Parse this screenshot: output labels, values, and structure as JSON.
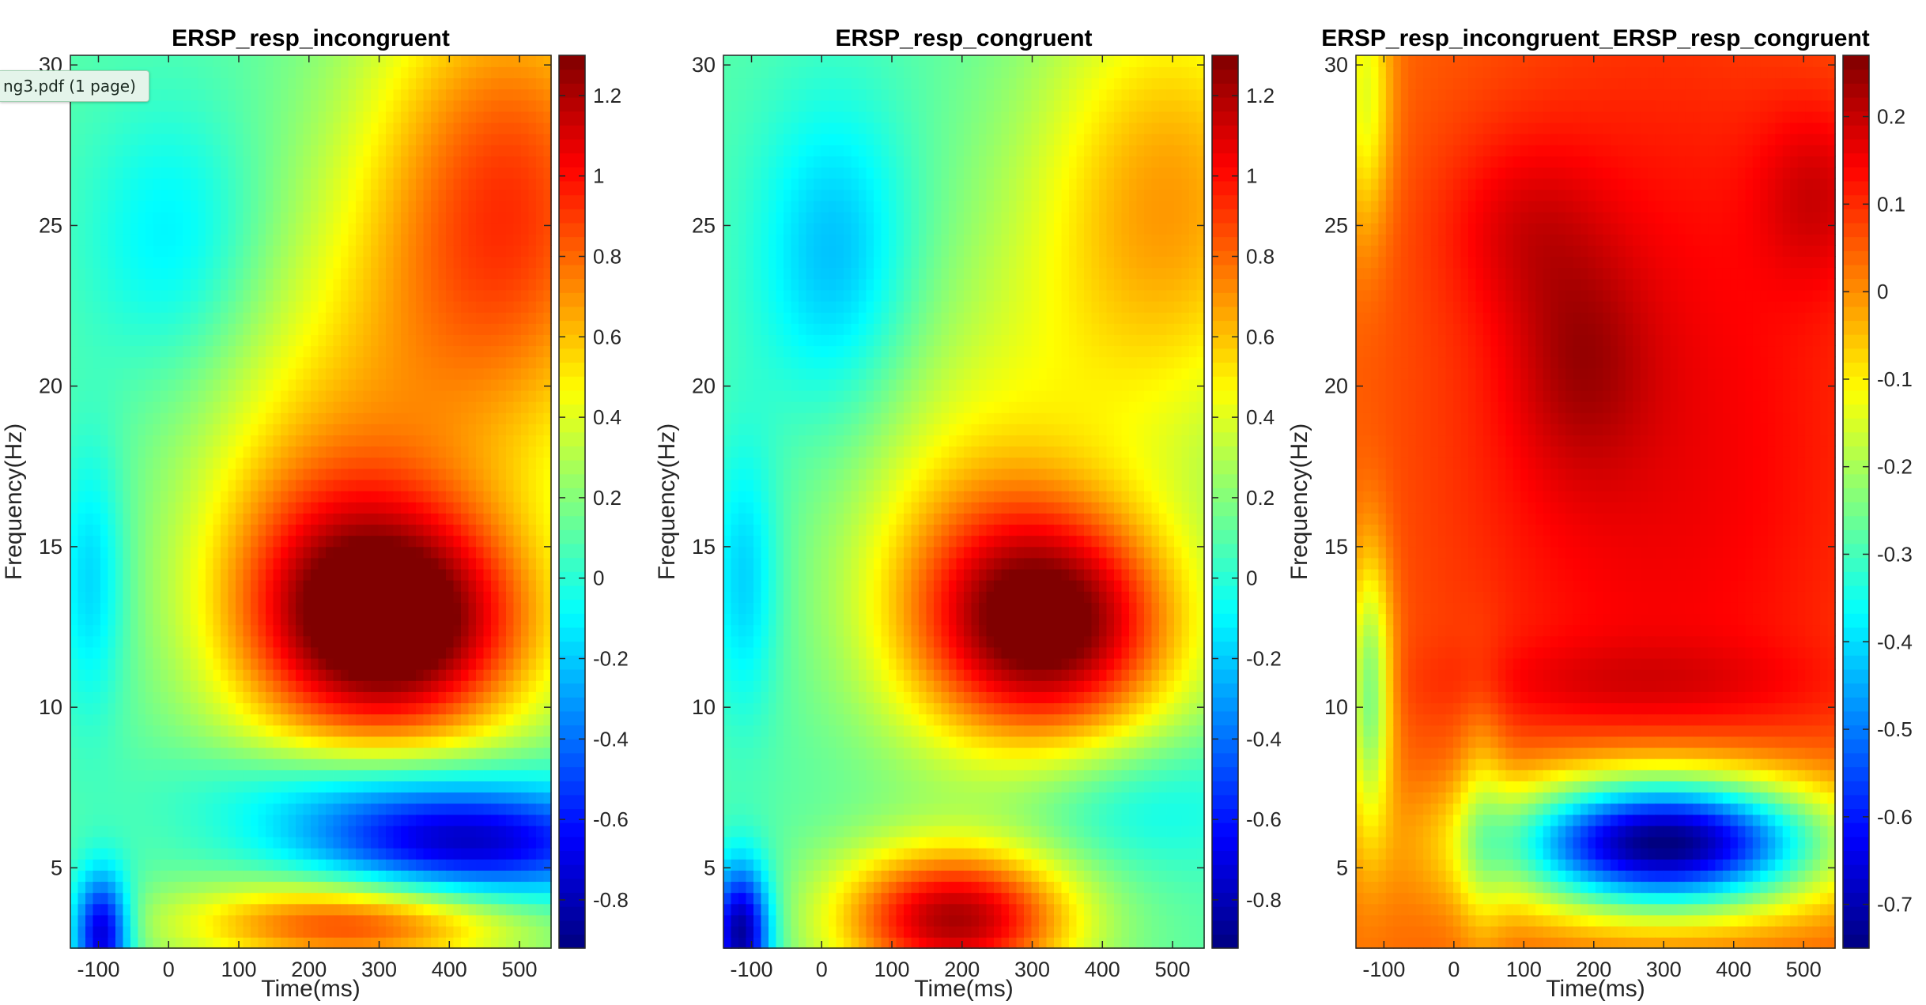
{
  "tooltip": {
    "text": "ng3.pdf (1 page)"
  },
  "colormap": "jet",
  "chart_data": [
    {
      "type": "heatmap",
      "title": "ERSP_resp_incongruent",
      "xlabel": "Time(ms)",
      "ylabel": "Frequency(Hz)",
      "xlim": [
        -140,
        545
      ],
      "ylim": [
        2.5,
        30.3
      ],
      "xticks": [
        -100,
        0,
        100,
        200,
        300,
        400,
        500
      ],
      "yticks": [
        5,
        10,
        15,
        20,
        25,
        30
      ],
      "clim": [
        -0.92,
        1.3
      ],
      "cticks": [
        -0.8,
        -0.6,
        -0.4,
        -0.2,
        0,
        0.2,
        0.4,
        0.6,
        0.8,
        1,
        1.2
      ],
      "cbar_baseline": 0.1,
      "features": [
        {
          "t": 330,
          "f": 12.5,
          "st": 140,
          "sf": 2.6,
          "a": 1.15
        },
        {
          "t": 210,
          "f": 14.5,
          "st": 130,
          "sf": 4.0,
          "a": 0.45
        },
        {
          "t": 490,
          "f": 26.0,
          "st": 150,
          "sf": 5.5,
          "a": 0.75
        },
        {
          "t": 300,
          "f": 20.0,
          "st": 180,
          "sf": 5.0,
          "a": 0.25
        },
        {
          "t": 420,
          "f": 5.8,
          "st": 170,
          "sf": 1.3,
          "a": -0.9
        },
        {
          "t": 250,
          "f": 7.5,
          "st": 150,
          "sf": 1.0,
          "a": -0.25
        },
        {
          "t": 260,
          "f": 3.3,
          "st": 170,
          "sf": 1.0,
          "a": 0.8
        },
        {
          "t": -95,
          "f": 3.0,
          "st": 28,
          "sf": 1.3,
          "a": -0.9
        },
        {
          "t": -110,
          "f": 14.0,
          "st": 35,
          "sf": 3.0,
          "a": -0.3
        },
        {
          "t": 10,
          "f": 24.5,
          "st": 90,
          "sf": 3.0,
          "a": -0.25
        }
      ]
    },
    {
      "type": "heatmap",
      "title": "ERSP_resp_congruent",
      "xlabel": "Time(ms)",
      "ylabel": "Frequency(Hz)",
      "xlim": [
        -140,
        545
      ],
      "ylim": [
        2.5,
        30.3
      ],
      "xticks": [
        -100,
        0,
        100,
        200,
        300,
        400,
        500
      ],
      "yticks": [
        5,
        10,
        15,
        20,
        25,
        30
      ],
      "clim": [
        -0.92,
        1.3
      ],
      "cticks": [
        -0.8,
        -0.6,
        -0.4,
        -0.2,
        0,
        0.2,
        0.4,
        0.6,
        0.8,
        1,
        1.2
      ],
      "cbar_baseline": 0.1,
      "features": [
        {
          "t": 330,
          "f": 12.5,
          "st": 130,
          "sf": 2.6,
          "a": 1.1
        },
        {
          "t": 210,
          "f": 14.5,
          "st": 130,
          "sf": 4.0,
          "a": 0.35
        },
        {
          "t": 500,
          "f": 26.0,
          "st": 140,
          "sf": 5.0,
          "a": 0.55
        },
        {
          "t": 300,
          "f": 20.0,
          "st": 170,
          "sf": 5.0,
          "a": 0.15
        },
        {
          "t": 190,
          "f": 3.4,
          "st": 120,
          "sf": 1.6,
          "a": 1.1
        },
        {
          "t": 450,
          "f": 7.0,
          "st": 130,
          "sf": 1.5,
          "a": -0.2
        },
        {
          "t": -115,
          "f": 3.0,
          "st": 30,
          "sf": 1.5,
          "a": -1.0
        },
        {
          "t": -110,
          "f": 14.0,
          "st": 35,
          "sf": 3.0,
          "a": -0.3
        },
        {
          "t": 20,
          "f": 24.0,
          "st": 80,
          "sf": 3.5,
          "a": -0.35
        }
      ]
    },
    {
      "type": "heatmap",
      "title": "ERSP_resp_incongruent_ERSP_resp_congruent",
      "xlabel": "Time(ms)",
      "ylabel": "Frequency(Hz)",
      "xlim": [
        -140,
        545
      ],
      "ylim": [
        2.5,
        30.3
      ],
      "xticks": [
        -100,
        0,
        100,
        200,
        300,
        400,
        500
      ],
      "yticks": [
        5,
        10,
        15,
        20,
        25,
        30
      ],
      "clim": [
        -0.75,
        0.27
      ],
      "cticks": [
        -0.7,
        -0.6,
        -0.5,
        -0.4,
        -0.3,
        -0.2,
        -0.1,
        0,
        0.1,
        0.2
      ],
      "cbar_baseline": 0.02,
      "features": [
        {
          "t": 300,
          "f": 18.0,
          "st": 260,
          "sf": 11.0,
          "a": 0.14
        },
        {
          "t": 180,
          "f": 20.8,
          "st": 70,
          "sf": 2.5,
          "a": 0.1
        },
        {
          "t": 520,
          "f": 26.0,
          "st": 60,
          "sf": 2.0,
          "a": 0.1
        },
        {
          "t": 100,
          "f": 25.0,
          "st": 80,
          "sf": 2.0,
          "a": 0.08
        },
        {
          "t": 250,
          "f": 10.8,
          "st": 200,
          "sf": 0.9,
          "a": 0.06
        },
        {
          "t": 300,
          "f": 5.8,
          "st": 160,
          "sf": 1.5,
          "a": -0.85
        },
        {
          "t": -120,
          "f": 10.5,
          "st": 22,
          "sf": 3.0,
          "a": -0.3
        },
        {
          "t": -125,
          "f": 29.0,
          "st": 25,
          "sf": 3.0,
          "a": -0.18
        },
        {
          "t": 40,
          "f": 6.5,
          "st": 25,
          "sf": 3.0,
          "a": -0.1
        }
      ]
    }
  ]
}
